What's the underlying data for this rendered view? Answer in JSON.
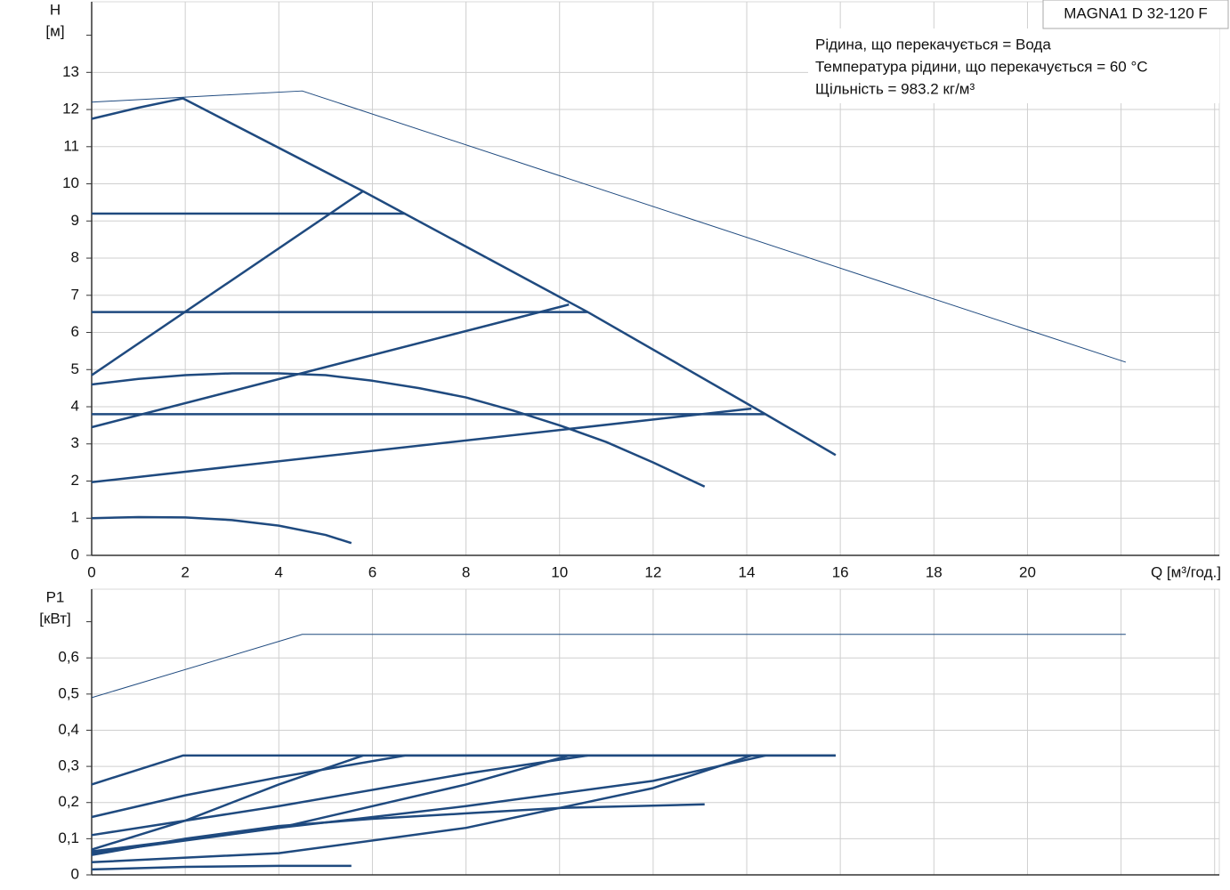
{
  "chart_data": [
    {
      "type": "line",
      "title": "MAGNA1 D 32-120 F",
      "annotations": [
        "Рідина, що перекачується = Вода",
        "Температура рідини, що перекачується = 60 °C",
        "Щільність = 983.2 кг/м³"
      ],
      "ylabel": [
        "H",
        "[м]"
      ],
      "xlabel": "Q [м³/год.]",
      "xlim": [
        0,
        24.1
      ],
      "ylim": [
        0,
        14.9
      ],
      "xticks": [
        0,
        2,
        4,
        6,
        8,
        10,
        12,
        14,
        16,
        18,
        20
      ],
      "unlabeled_xticks": [
        22,
        24
      ],
      "yticks": [
        0,
        1,
        2,
        3,
        4,
        5,
        6,
        7,
        8,
        9,
        10,
        11,
        12,
        13
      ],
      "unlabeled_yticks": [
        14
      ],
      "grid": true,
      "series": [
        {
          "color": "#1f4a7f",
          "line_width": 1,
          "x": [
            0,
            4.5,
            22.1
          ],
          "values": [
            12.2,
            12.5,
            5.2
          ]
        },
        {
          "color": "#1f4a7f",
          "line_width": 2.5,
          "x": [
            0,
            1,
            1.95,
            5.8,
            10.6,
            14.4,
            15.9
          ],
          "values": [
            11.75,
            12.05,
            12.3,
            9.8,
            6.55,
            3.8,
            2.7
          ]
        },
        {
          "color": "#1f4a7f",
          "line_width": 2.5,
          "x": [
            0,
            6.7
          ],
          "values": [
            9.2,
            9.2
          ]
        },
        {
          "color": "#1f4a7f",
          "line_width": 2.5,
          "x": [
            0,
            10.6
          ],
          "values": [
            6.55,
            6.55
          ]
        },
        {
          "color": "#1f4a7f",
          "line_width": 2.5,
          "x": [
            0,
            14.4
          ],
          "values": [
            3.8,
            3.8
          ]
        },
        {
          "color": "#1f4a7f",
          "line_width": 2.5,
          "x": [
            0,
            5.8
          ],
          "values": [
            4.85,
            9.8
          ]
        },
        {
          "color": "#1f4a7f",
          "line_width": 2.5,
          "x": [
            0,
            10.2
          ],
          "values": [
            3.45,
            6.75
          ]
        },
        {
          "color": "#1f4a7f",
          "line_width": 2.5,
          "x": [
            0,
            14.1
          ],
          "values": [
            1.97,
            3.95
          ]
        },
        {
          "color": "#1f4a7f",
          "line_width": 2.5,
          "x": [
            0,
            1,
            2,
            3,
            4,
            5,
            6,
            7,
            8,
            9,
            10,
            11,
            12,
            13.1
          ],
          "values": [
            4.6,
            4.75,
            4.85,
            4.9,
            4.9,
            4.85,
            4.7,
            4.5,
            4.25,
            3.9,
            3.5,
            3.05,
            2.5,
            1.85
          ]
        },
        {
          "color": "#1f4a7f",
          "line_width": 2.5,
          "x": [
            0,
            1,
            2,
            3,
            4,
            5,
            5.55
          ],
          "values": [
            1.0,
            1.03,
            1.02,
            0.95,
            0.8,
            0.55,
            0.33
          ]
        }
      ]
    },
    {
      "type": "line",
      "ylabel": [
        "P1",
        "[кВт]"
      ],
      "xlim": [
        0,
        24.1
      ],
      "ylim": [
        0,
        0.79
      ],
      "unlabeled_xticks": [
        2,
        4,
        6,
        8,
        10,
        12,
        14,
        16,
        18,
        20,
        22,
        24
      ],
      "yticks": [
        0,
        {
          "value": 0.1,
          "label": "0,1"
        },
        {
          "value": 0.2,
          "label": "0,2"
        },
        {
          "value": 0.3,
          "label": "0,3"
        },
        {
          "value": 0.4,
          "label": "0,4"
        },
        {
          "value": 0.5,
          "label": "0,5"
        },
        {
          "value": 0.6,
          "label": "0,6"
        }
      ],
      "unlabeled_yticks": [
        0.7
      ],
      "grid": true,
      "series": [
        {
          "color": "#1f4a7f",
          "line_width": 1,
          "x": [
            0,
            4.5,
            22.1
          ],
          "values": [
            0.49,
            0.665,
            0.665
          ]
        },
        {
          "color": "#1f4a7f",
          "line_width": 2.5,
          "x": [
            0,
            1.95,
            15.9
          ],
          "values": [
            0.25,
            0.33,
            0.33
          ]
        },
        {
          "color": "#1f4a7f",
          "line_width": 2.5,
          "x": [
            0,
            2,
            4,
            6.7,
            15.9
          ],
          "values": [
            0.16,
            0.22,
            0.27,
            0.33,
            0.33
          ]
        },
        {
          "color": "#1f4a7f",
          "line_width": 2.5,
          "x": [
            0,
            2,
            4,
            5.8
          ],
          "values": [
            0.07,
            0.15,
            0.25,
            0.33
          ]
        },
        {
          "color": "#1f4a7f",
          "line_width": 2.5,
          "x": [
            0,
            4,
            8,
            10.6
          ],
          "values": [
            0.11,
            0.19,
            0.28,
            0.33
          ]
        },
        {
          "color": "#1f4a7f",
          "line_width": 2.5,
          "x": [
            0,
            4,
            8,
            10.2
          ],
          "values": [
            0.06,
            0.13,
            0.25,
            0.33
          ]
        },
        {
          "color": "#1f4a7f",
          "line_width": 2.5,
          "x": [
            0,
            4,
            8,
            12,
            14.4
          ],
          "values": [
            0.065,
            0.13,
            0.19,
            0.26,
            0.33
          ]
        },
        {
          "color": "#1f4a7f",
          "line_width": 2.5,
          "x": [
            0,
            4,
            8,
            12,
            14.1
          ],
          "values": [
            0.035,
            0.06,
            0.13,
            0.24,
            0.33
          ]
        },
        {
          "color": "#1f4a7f",
          "line_width": 2.5,
          "x": [
            0,
            2,
            4,
            6,
            8,
            10,
            13.1
          ],
          "values": [
            0.055,
            0.1,
            0.135,
            0.155,
            0.17,
            0.185,
            0.195
          ]
        },
        {
          "color": "#1f4a7f",
          "line_width": 2.5,
          "x": [
            0,
            2,
            4,
            5.55
          ],
          "values": [
            0.015,
            0.022,
            0.025,
            0.025
          ]
        }
      ]
    }
  ]
}
